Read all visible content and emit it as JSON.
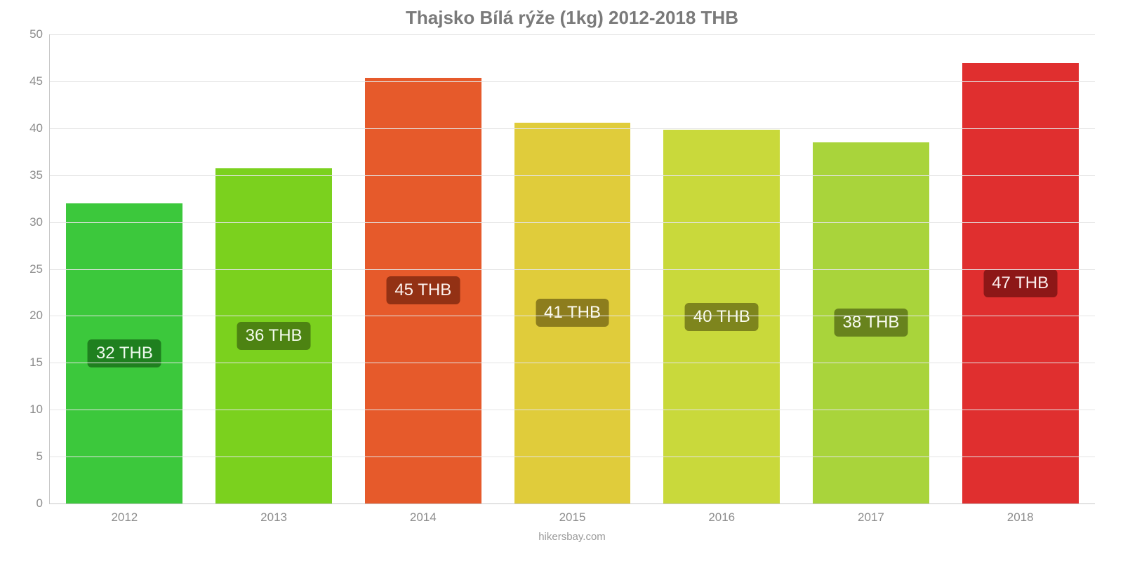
{
  "chart": {
    "type": "bar",
    "title": "Thajsko Bílá rýže (1kg) 2012-2018 THB",
    "title_color": "#7a7a7a",
    "title_fontsize": 26,
    "source": "hikersbay.com",
    "background_color": "#ffffff",
    "grid_color": "#e4e4e4",
    "axis_color": "#c8c8c8",
    "tick_label_color": "#8d8d8d",
    "tick_label_fontsize": 17,
    "ylim": [
      0,
      50
    ],
    "ytick_step": 5,
    "yticks": [
      0,
      5,
      10,
      15,
      20,
      25,
      30,
      35,
      40,
      45,
      50
    ],
    "categories": [
      "2012",
      "2013",
      "2014",
      "2015",
      "2016",
      "2017",
      "2018"
    ],
    "values": [
      32,
      35.7,
      45.4,
      40.6,
      39.8,
      38.5,
      46.9
    ],
    "bar_labels": [
      "32 THB",
      "36 THB",
      "45 THB",
      "41 THB",
      "40 THB",
      "38 THB",
      "47 THB"
    ],
    "bar_colors": [
      "#3cc83c",
      "#7bd11e",
      "#e65a2b",
      "#e0cc3b",
      "#c9d93b",
      "#a9d43b",
      "#e02f2f"
    ],
    "bar_label_bg": [
      "#1d7a1d",
      "#4a7d12",
      "#8c2e13",
      "#86771b",
      "#787e1b",
      "#637d1b",
      "#861616"
    ],
    "bar_label_fontsize": 24,
    "bar_width_ratio": 0.78
  }
}
